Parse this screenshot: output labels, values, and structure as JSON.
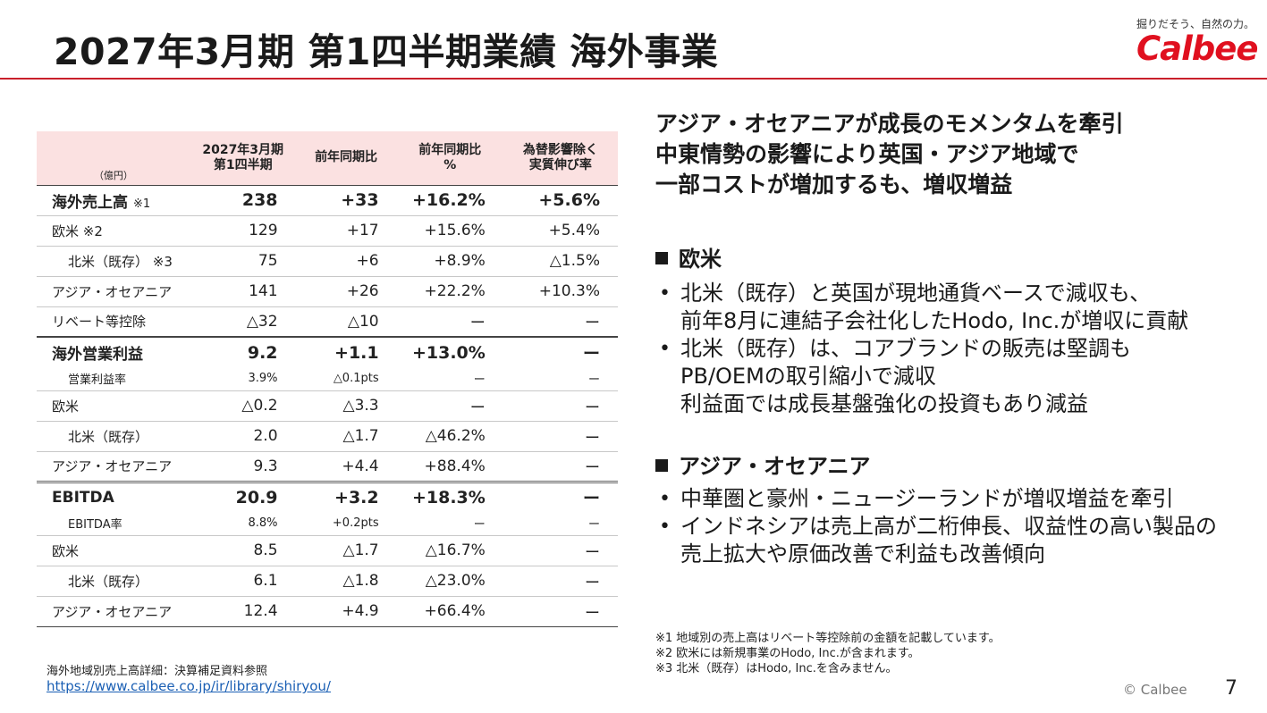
{
  "title": "2027年3月期 第1四半期業績  海外事業",
  "logo": {
    "tagline": "掘りだそう、自然の力。",
    "wordmark": "Calbee"
  },
  "table": {
    "unit": "（億円）",
    "headers": [
      "2027年3月期\n第1四半期",
      "前年同期比",
      "前年同期比\n%",
      "為替影響除く\n実質伸び率"
    ],
    "sales": {
      "main": {
        "label": "海外売上高",
        "note": "※1",
        "values": [
          "238",
          "+33",
          "+16.2%",
          "+5.6%"
        ]
      },
      "rows": [
        {
          "label": "欧米 ※2",
          "values": [
            "129",
            "+17",
            "+15.6%",
            "+5.4%"
          ]
        },
        {
          "label": "北米（既存） ※3",
          "values": [
            "75",
            "+6",
            "+8.9%",
            "△1.5%"
          ]
        },
        {
          "label": "アジア・オセアニア",
          "values": [
            "141",
            "+26",
            "+22.2%",
            "+10.3%"
          ]
        },
        {
          "label": "リベート等控除",
          "values": [
            "△32",
            "△10",
            "ー",
            "ー"
          ]
        }
      ]
    },
    "op": {
      "main": {
        "label": "海外営業利益",
        "values": [
          "9.2",
          "+1.1",
          "+13.0%",
          "ー"
        ]
      },
      "rate": {
        "label": "営業利益率",
        "values": [
          "3.9%",
          "△0.1pts",
          "ー",
          "ー"
        ]
      },
      "rows": [
        {
          "label": "欧米",
          "values": [
            "△0.2",
            "△3.3",
            "ー",
            "ー"
          ]
        },
        {
          "label": "北米（既存）",
          "values": [
            "2.0",
            "△1.7",
            "△46.2%",
            "ー"
          ]
        },
        {
          "label": "アジア・オセアニア",
          "values": [
            "9.3",
            "+4.4",
            "+88.4%",
            "ー"
          ]
        }
      ]
    },
    "ebitda": {
      "main": {
        "label": "EBITDA",
        "values": [
          "20.9",
          "+3.2",
          "+18.3%",
          "ー"
        ]
      },
      "rate": {
        "label": "EBITDA率",
        "values": [
          "8.8%",
          "+0.2pts",
          "ー",
          "ー"
        ]
      },
      "rows": [
        {
          "label": "欧米",
          "values": [
            "8.5",
            "△1.7",
            "△16.7%",
            "ー"
          ]
        },
        {
          "label": "北米（既存）",
          "values": [
            "6.1",
            "△1.8",
            "△23.0%",
            "ー"
          ]
        },
        {
          "label": "アジア・オセアニア",
          "values": [
            "12.4",
            "+4.9",
            "+66.4%",
            "ー"
          ]
        }
      ]
    }
  },
  "source": {
    "text": "海外地域別売上高詳細：決算補足資料参照",
    "url": "https://www.calbee.co.jp/ir/library/shiryou/"
  },
  "headline": [
    "アジア・オセアニアが成長のモメンタムを牽引",
    "中東情勢の影響により英国・アジア地域で",
    "一部コストが増加するも、増収増益"
  ],
  "sections": [
    {
      "heading": "欧米",
      "bullets": [
        [
          "北米（既存）と英国が現地通貨ベースで減収も、",
          "前年8月に連結子会社化したHodo, Inc.が増収に貢献"
        ],
        [
          "北米（既存）は、コアブランドの販売は堅調も",
          "PB/OEMの取引縮小で減収",
          "利益面では成長基盤強化の投資もあり減益"
        ]
      ]
    },
    {
      "heading": "アジア・オセアニア",
      "bullets": [
        [
          "中華圏と豪州・ニュージーランドが増収増益を牽引"
        ],
        [
          "インドネシアは売上高が二桁伸長、収益性の高い製品の",
          "売上拡大や原価改善で利益も改善傾向"
        ]
      ]
    }
  ],
  "footnotes": [
    "※1  地域別の売上高はリベート等控除前の金額を記載しています。",
    "※2  欧米には新規事業のHodo, Inc.が含まれます。",
    "※3  北米（既存）はHodo, Inc.を含みません。"
  ],
  "copyright": "© Calbee",
  "page_number": "7",
  "colors": {
    "accent": "#c9202a",
    "header_bg": "#fbe1e1",
    "brand": "#e0101f"
  }
}
